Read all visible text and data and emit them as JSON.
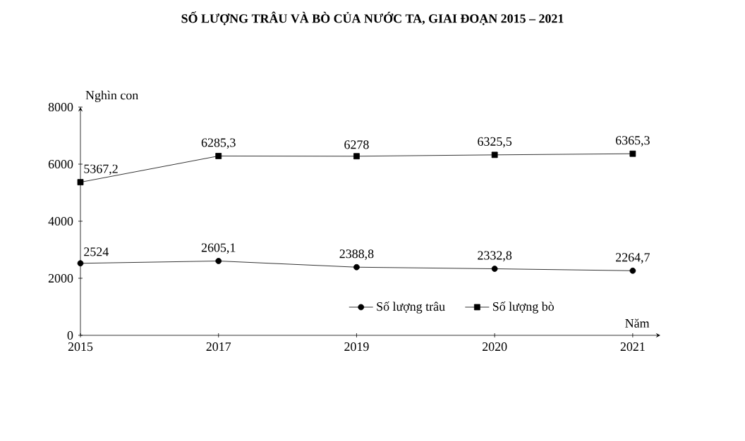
{
  "chart_data": {
    "type": "line",
    "title": "SỐ LƯỢNG TRÂU VÀ BÒ CỦA NƯỚC TA, GIAI ĐOẠN 2015 – 2021",
    "xlabel": "Năm",
    "ylabel": "Nghìn con",
    "categories": [
      "2015",
      "2017",
      "2019",
      "2020",
      "2021"
    ],
    "series": [
      {
        "name": "Số lượng trâu",
        "color": "#000000",
        "marker": "circle",
        "values": [
          2524,
          2605.1,
          2388.8,
          2332.8,
          2264.7
        ],
        "value_labels": [
          "2524",
          "2605,1",
          "2388,8",
          "2332,8",
          "2264,7"
        ]
      },
      {
        "name": "Số lượng bò",
        "color": "#000000",
        "marker": "square",
        "values": [
          5367.2,
          6285.3,
          6278,
          6325.5,
          6365.3
        ],
        "value_labels": [
          "5367,2",
          "6285,3",
          "6278",
          "6325,5",
          "6365,3"
        ]
      }
    ],
    "ylim": [
      0,
      8000
    ],
    "yticks": [
      0,
      2000,
      4000,
      6000,
      8000
    ],
    "legend": "bottom"
  }
}
